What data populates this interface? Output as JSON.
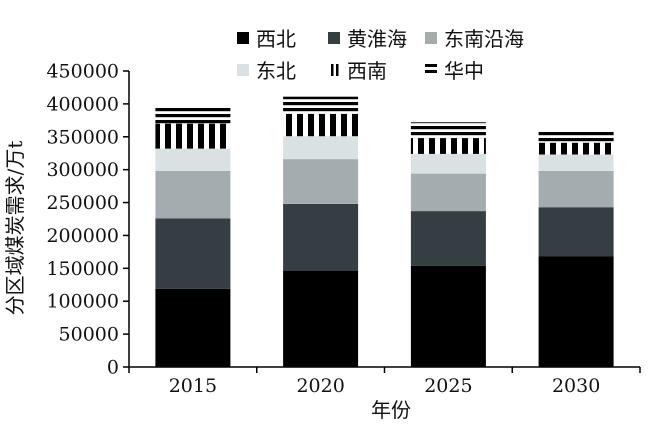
{
  "chart_data": {
    "type": "bar",
    "stacked": true,
    "categories": [
      "2015",
      "2020",
      "2025",
      "2030"
    ],
    "xlabel": "年份",
    "ylabel": "分区域煤炭需求/万t",
    "ylim": [
      0,
      450000
    ],
    "yticks": [
      0,
      50000,
      100000,
      150000,
      200000,
      250000,
      300000,
      350000,
      400000,
      450000
    ],
    "grid": false,
    "legend_position": "top",
    "series": [
      {
        "name": "西北",
        "pattern": "solid",
        "color": "#000000",
        "values": [
          119000,
          146000,
          154000,
          168000
        ]
      },
      {
        "name": "黄淮海",
        "pattern": "solid",
        "color": "#343e43",
        "values": [
          107000,
          102000,
          83000,
          75000
        ]
      },
      {
        "name": "东南沿海",
        "pattern": "solid",
        "color": "#a3acaf",
        "values": [
          72000,
          68000,
          57000,
          55000
        ]
      },
      {
        "name": "东北",
        "pattern": "solid",
        "color": "#d9e1e2",
        "values": [
          34000,
          35000,
          30000,
          25000
        ]
      },
      {
        "name": "西南",
        "pattern": "vertical-stripes",
        "color": "#000000",
        "values": [
          38000,
          34000,
          24000,
          18000
        ]
      },
      {
        "name": "华中",
        "pattern": "horizontal-stripes",
        "color": "#000000",
        "values": [
          24000,
          26000,
          24000,
          18000
        ]
      }
    ]
  }
}
